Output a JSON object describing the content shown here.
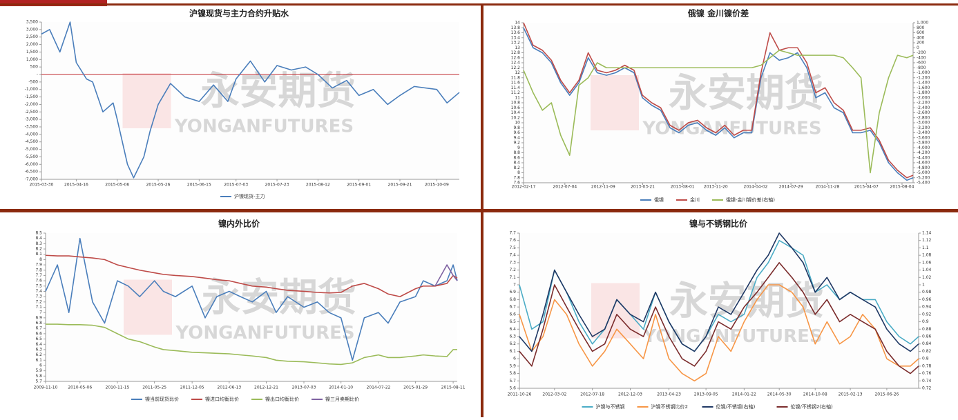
{
  "watermark": {
    "cn": "永安期货",
    "en": "YONGANFUTURES"
  },
  "chart_data": [
    {
      "type": "line",
      "title": "沪镍现货与主力合约升贴水",
      "x": [
        "2015-03-30",
        "2015-04-03",
        "2015-04-08",
        "2015-04-13",
        "2015-04-16",
        "2015-04-21",
        "2015-04-24",
        "2015-04-29",
        "2015-05-04",
        "2015-05-06",
        "2015-05-11",
        "2015-05-14",
        "2015-05-19",
        "2015-05-22",
        "2015-05-26",
        "2015-06-01",
        "2015-06-08",
        "2015-06-15",
        "2015-06-22",
        "2015-06-29",
        "2015-07-03",
        "2015-07-10",
        "2015-07-17",
        "2015-07-23",
        "2015-07-30",
        "2015-08-06",
        "2015-08-12",
        "2015-08-19",
        "2015-08-26",
        "2015-09-01",
        "2015-09-08",
        "2015-09-15",
        "2015-09-21",
        "2015-09-28",
        "2015-10-09",
        "2015-10-14",
        "2015-10-20"
      ],
      "xlim": [
        "2015-03-30",
        "2015-10-20"
      ],
      "xticks": [
        "2015-03-30",
        "2015-04-16",
        "2015-05-06",
        "2015-05-26",
        "2015-06-15",
        "2015-07-03",
        "2015-07-23",
        "2015-08-12",
        "2015-09-01",
        "2015-09-21",
        "2015-10-09"
      ],
      "ylim": [
        -7000,
        3500
      ],
      "yticks": [
        {
          "value": -7000,
          "label": "-7,000"
        },
        {
          "value": -6500,
          "label": "-6,500"
        },
        {
          "value": -6000,
          "label": "-6,000"
        },
        {
          "value": -5500,
          "label": "-5,500"
        },
        {
          "value": -5000,
          "label": "-5,000"
        },
        {
          "value": -4500,
          "label": "-4,500"
        },
        {
          "value": -4000,
          "label": "-4,000"
        },
        {
          "value": -3500,
          "label": "-3,500"
        },
        {
          "value": -3000,
          "label": "-3,000"
        },
        {
          "value": -2500,
          "label": "-2,500"
        },
        {
          "value": -2000,
          "label": "-2,000"
        },
        {
          "value": -1500,
          "label": "-1,500"
        },
        {
          "value": -1000,
          "label": "-1,000"
        },
        -500,
        {
          "value": 0,
          "label": "-"
        },
        500,
        {
          "value": 1000,
          "label": "1,000"
        },
        {
          "value": 1500,
          "label": "1,500"
        },
        {
          "value": 2000,
          "label": "2,000"
        },
        {
          "value": 2500,
          "label": "2,500"
        },
        {
          "value": 3000,
          "label": "3,000"
        },
        {
          "value": 3500,
          "label": "3,500"
        }
      ],
      "hline": 0,
      "hline_color": "#c0272d",
      "series": [
        {
          "name": "沪镍现货-主力",
          "color": "#4a7ebb",
          "values": [
            2700,
            3000,
            1500,
            3500,
            800,
            -300,
            -500,
            -2500,
            -1900,
            -3000,
            -6000,
            -6900,
            -5500,
            -3800,
            -2000,
            -600,
            -1500,
            -1800,
            -700,
            -1800,
            -300,
            900,
            -500,
            600,
            300,
            500,
            0,
            -900,
            -400,
            -1400,
            -1000,
            -2000,
            -1400,
            -800,
            -1000,
            -1900,
            -1200
          ]
        }
      ]
    },
    {
      "type": "line",
      "title": "俄镍  金川镍价差",
      "x": [
        "2012-02-17",
        "2012-03-20",
        "2012-04-20",
        "2012-05-20",
        "2012-06-20",
        "2012-07-20",
        "2012-08-20",
        "2012-09-20",
        "2012-10-20",
        "2012-11-20",
        "2012-12-20",
        "2013-01-20",
        "2013-02-20",
        "2013-03-20",
        "2013-04-20",
        "2013-05-20",
        "2013-06-20",
        "2013-07-20",
        "2013-08-20",
        "2013-09-20",
        "2013-10-20",
        "2013-11-20",
        "2013-12-20",
        "2014-01-20",
        "2014-02-20",
        "2014-03-20",
        "2014-04-20",
        "2014-05-20",
        "2014-06-20",
        "2014-07-20",
        "2014-08-20",
        "2014-09-20",
        "2014-10-20",
        "2014-11-20",
        "2014-12-20",
        "2015-01-20",
        "2015-02-20",
        "2015-03-20",
        "2015-04-20",
        "2015-05-20",
        "2015-06-20",
        "2015-07-20",
        "2015-08-20",
        "2015-09-10"
      ],
      "xlim": [
        "2012-02-17",
        "2015-09-10"
      ],
      "xticks": [
        "2012-02-17",
        "2012-07-04",
        "2012-11-09",
        "2013-03-21",
        "2013-08-01",
        "2013-11-20",
        "2014-04-02",
        "2014-07-29",
        "2014-11-28",
        "2015-04-07",
        "2015-08-04"
      ],
      "ylim": [
        7.6,
        14
      ],
      "yticks": [
        7.6,
        7.8,
        8,
        8.2,
        8.4,
        8.6,
        8.8,
        9,
        9.2,
        9.4,
        9.6,
        9.8,
        10,
        10.2,
        10.4,
        10.6,
        10.8,
        11,
        11.2,
        11.4,
        11.6,
        11.8,
        12,
        12.2,
        12.4,
        12.6,
        12.8,
        13,
        13.2,
        13.4,
        13.6,
        13.8,
        14
      ],
      "y2lim": [
        -5400,
        1000
      ],
      "y2ticks": [
        {
          "value": -5400,
          "label": "-5,400"
        },
        {
          "value": -5200,
          "label": "-5,200"
        },
        {
          "value": -5000,
          "label": "-5,000"
        },
        {
          "value": -4800,
          "label": "-4,800"
        },
        {
          "value": -4600,
          "label": "-4,600"
        },
        {
          "value": -4400,
          "label": "-4,400"
        },
        {
          "value": -4200,
          "label": "-4,200"
        },
        {
          "value": -4000,
          "label": "-4,000"
        },
        {
          "value": -3800,
          "label": "-3,800"
        },
        {
          "value": -3600,
          "label": "-3,600"
        },
        {
          "value": -3400,
          "label": "-3,400"
        },
        {
          "value": -3200,
          "label": "-3,200"
        },
        {
          "value": -3000,
          "label": "-3,000"
        },
        {
          "value": -2800,
          "label": "-2,800"
        },
        {
          "value": -2600,
          "label": "-2,600"
        },
        {
          "value": -2400,
          "label": "-2,400"
        },
        {
          "value": -2200,
          "label": "-2,200"
        },
        {
          "value": -2000,
          "label": "-2,000"
        },
        {
          "value": -1800,
          "label": "-1,800"
        },
        {
          "value": -1600,
          "label": "-1,600"
        },
        {
          "value": -1400,
          "label": "-1,400"
        },
        {
          "value": -1200,
          "label": "-1,200"
        },
        {
          "value": -1000,
          "label": "-1,000"
        },
        -800,
        -600,
        -400,
        -200,
        0,
        200,
        400,
        600,
        800,
        {
          "value": 1000,
          "label": "1,000"
        }
      ],
      "series": [
        {
          "name": "俄镍",
          "color": "#4a7ebb",
          "values": [
            13.8,
            13.0,
            12.8,
            12.4,
            11.6,
            11.1,
            11.6,
            12.6,
            12.0,
            11.9,
            12.0,
            12.2,
            12.0,
            11.0,
            10.7,
            10.5,
            9.8,
            9.6,
            9.9,
            10.0,
            9.7,
            9.5,
            9.8,
            9.4,
            9.6,
            9.6,
            11.8,
            12.8,
            12.5,
            12.6,
            12.8,
            12.2,
            11.0,
            11.2,
            10.6,
            10.4,
            9.6,
            9.6,
            9.7,
            9.2,
            8.4,
            8.0,
            7.7,
            7.8
          ]
        },
        {
          "name": "金川",
          "color": "#be4b48",
          "values": [
            14.0,
            13.1,
            12.9,
            12.5,
            11.7,
            11.2,
            11.7,
            12.8,
            12.1,
            12.0,
            12.1,
            12.3,
            12.1,
            11.1,
            10.8,
            10.6,
            9.9,
            9.7,
            10.0,
            10.1,
            9.8,
            9.6,
            9.9,
            9.5,
            9.7,
            9.7,
            12.0,
            13.6,
            12.9,
            13.0,
            13.0,
            12.4,
            11.2,
            11.4,
            10.8,
            10.5,
            9.7,
            9.7,
            9.8,
            9.3,
            8.5,
            8.1,
            7.8,
            7.9
          ]
        },
        {
          "name": "俄镍-金川镍价差(右轴)",
          "color": "#9bbb59",
          "axis": "y2",
          "values": [
            -900,
            -1800,
            -2500,
            -2200,
            -3500,
            -4300,
            -1500,
            -1200,
            -600,
            -800,
            -800,
            -800,
            -800,
            -800,
            -800,
            -800,
            -800,
            -800,
            -800,
            -800,
            -800,
            -800,
            -800,
            -800,
            -800,
            -800,
            -700,
            -400,
            -100,
            -200,
            -300,
            -300,
            -300,
            -300,
            -300,
            -400,
            -800,
            -1200,
            -5000,
            -2600,
            -1200,
            -300,
            -400,
            -300
          ]
        }
      ]
    },
    {
      "type": "line",
      "title": "镍内外比价",
      "x": [
        "2009-11-10",
        "2010-01-10",
        "2010-03-10",
        "2010-05-06",
        "2010-07-10",
        "2010-09-10",
        "2010-11-15",
        "2011-01-10",
        "2011-03-10",
        "2011-05-25",
        "2011-07-10",
        "2011-09-10",
        "2011-12-05",
        "2012-02-10",
        "2012-04-10",
        "2012-06-13",
        "2012-08-10",
        "2012-10-10",
        "2012-12-21",
        "2013-02-10",
        "2013-04-10",
        "2013-07-03",
        "2013-09-10",
        "2013-11-10",
        "2014-01-10",
        "2014-03-10",
        "2014-05-10",
        "2014-07-22",
        "2014-09-10",
        "2014-11-10",
        "2015-01-29",
        "2015-03-10",
        "2015-05-10",
        "2015-07-10",
        "2015-08-11",
        "2015-09-01"
      ],
      "xlim": [
        "2009-11-10",
        "2015-09-01"
      ],
      "xticks": [
        "2009-11-10",
        "2010-05-06",
        "2010-11-15",
        "2011-05-25",
        "2011-12-05",
        "2012-06-13",
        "2012-12-21",
        "2013-07-03",
        "2014-01-10",
        "2014-07-22",
        "2015-01-29",
        "2015-08-11"
      ],
      "ylim": [
        5.7,
        8.5
      ],
      "yticks": [
        5.7,
        5.8,
        5.9,
        6,
        6.1,
        6.2,
        6.3,
        6.4,
        6.5,
        6.6,
        6.7,
        6.8,
        6.9,
        7,
        7.1,
        7.2,
        7.3,
        7.4,
        7.5,
        7.6,
        7.7,
        7.8,
        7.9,
        8,
        8.1,
        8.2,
        8.3,
        8.4,
        8.5
      ],
      "series": [
        {
          "name": "镍当前现货比价",
          "color": "#4a7ebb",
          "values": [
            7.4,
            7.9,
            7.0,
            8.4,
            7.2,
            6.8,
            7.6,
            7.5,
            7.3,
            7.6,
            7.4,
            7.3,
            7.5,
            6.9,
            7.3,
            7.4,
            7.3,
            7.2,
            7.4,
            7.0,
            7.3,
            7.1,
            7.2,
            7.0,
            6.9,
            6.1,
            6.9,
            7.0,
            6.8,
            7.2,
            7.3,
            7.6,
            7.5,
            7.6,
            7.9,
            7.6
          ]
        },
        {
          "name": "镍进口均衡比价",
          "color": "#be4b48",
          "values": [
            8.08,
            8.07,
            8.07,
            8.05,
            8.03,
            8.0,
            7.9,
            7.85,
            7.8,
            7.75,
            7.72,
            7.7,
            7.68,
            7.65,
            7.62,
            7.6,
            7.55,
            7.5,
            7.48,
            7.45,
            7.42,
            7.4,
            7.38,
            7.37,
            7.38,
            7.5,
            7.55,
            7.45,
            7.35,
            7.3,
            7.45,
            7.5,
            7.5,
            7.55,
            7.7,
            7.65
          ]
        },
        {
          "name": "镍出口均衡比价",
          "color": "#9bbb59",
          "values": [
            6.78,
            6.78,
            6.77,
            6.77,
            6.76,
            6.72,
            6.6,
            6.5,
            6.45,
            6.35,
            6.3,
            6.28,
            6.25,
            6.24,
            6.23,
            6.22,
            6.2,
            6.18,
            6.15,
            6.1,
            6.08,
            6.07,
            6.05,
            6.03,
            6.02,
            6.05,
            6.15,
            6.2,
            6.15,
            6.15,
            6.18,
            6.2,
            6.18,
            6.17,
            6.3,
            6.3
          ]
        },
        {
          "name": "镍三月卖期比价",
          "color": "#7f63a2",
          "values": [
            null,
            null,
            null,
            null,
            null,
            null,
            null,
            null,
            null,
            null,
            null,
            null,
            null,
            null,
            null,
            null,
            null,
            null,
            null,
            null,
            null,
            null,
            null,
            null,
            null,
            null,
            null,
            null,
            null,
            null,
            null,
            null,
            7.5,
            7.9,
            7.7,
            7.6
          ]
        }
      ]
    },
    {
      "type": "line",
      "title": "镍与不锈钢比价",
      "x": [
        "2011-10-26",
        "2011-12-10",
        "2012-01-20",
        "2012-03-02",
        "2012-04-15",
        "2012-05-30",
        "2012-07-18",
        "2012-09-01",
        "2012-10-15",
        "2012-12-03",
        "2013-01-20",
        "2013-03-05",
        "2013-04-23",
        "2013-06-10",
        "2013-07-25",
        "2013-09-05",
        "2013-10-20",
        "2013-12-05",
        "2014-01-22",
        "2014-03-10",
        "2014-04-20",
        "2014-05-30",
        "2014-07-15",
        "2014-08-25",
        "2014-10-08",
        "2014-11-20",
        "2015-01-05",
        "2015-02-13",
        "2015-03-30",
        "2015-05-15",
        "2015-06-26",
        "2015-08-10",
        "2015-09-20",
        "2015-10-20"
      ],
      "xlim": [
        "2011-10-26",
        "2015-10-20"
      ],
      "xticks": [
        "2011-10-26",
        "2012-03-02",
        "2012-07-18",
        "2012-12-03",
        "2013-04-23",
        "2013-09-05",
        "2014-01-22",
        "2014-05-30",
        "2014-10-08",
        "2015-02-13",
        "2015-06-26"
      ],
      "ylim": [
        5.6,
        7.7
      ],
      "yticks": [
        5.6,
        5.7,
        5.8,
        5.9,
        6,
        6.1,
        6.2,
        6.3,
        6.4,
        6.5,
        6.6,
        6.7,
        6.8,
        6.9,
        7,
        7.1,
        7.2,
        7.3,
        7.4,
        7.5,
        7.6,
        7.7
      ],
      "y2lim": [
        0.72,
        1.14
      ],
      "y2ticks": [
        0.72,
        0.74,
        0.76,
        0.78,
        0.8,
        0.82,
        0.84,
        0.86,
        0.88,
        0.9,
        0.92,
        0.94,
        0.96,
        0.98,
        1,
        1.02,
        1.04,
        1.06,
        1.08,
        1.1,
        1.12,
        1.14
      ],
      "series": [
        {
          "name": "沪镍与不锈钢",
          "color": "#4bacc6",
          "values": [
            7.0,
            6.4,
            6.5,
            7.2,
            6.9,
            6.5,
            6.2,
            6.4,
            6.8,
            6.6,
            6.4,
            6.9,
            6.5,
            6.2,
            6.1,
            6.3,
            6.6,
            6.5,
            6.6,
            7.1,
            7.3,
            7.6,
            7.5,
            7.4,
            6.9,
            7.0,
            6.8,
            6.9,
            6.8,
            6.8,
            6.5,
            6.3,
            6.2,
            6.3
          ]
        },
        {
          "name": "沪镍不锈钢比价2",
          "color": "#f79646",
          "values": [
            6.6,
            6.1,
            6.3,
            6.8,
            6.6,
            6.2,
            5.9,
            6.1,
            6.4,
            6.2,
            6.0,
            6.6,
            6.0,
            5.8,
            5.7,
            5.8,
            6.3,
            6.1,
            6.5,
            6.8,
            7.0,
            7.0,
            6.9,
            6.7,
            6.2,
            6.5,
            6.2,
            6.3,
            6.6,
            6.4,
            6.0,
            5.9,
            5.9,
            6.0
          ]
        },
        {
          "name": "伦镍/不锈钢(右轴)",
          "color": "#1f3864",
          "axis": "y2",
          "values": [
            0.86,
            0.82,
            0.92,
            1.04,
            0.98,
            0.92,
            0.86,
            0.88,
            0.96,
            0.92,
            0.9,
            0.98,
            0.9,
            0.84,
            0.82,
            0.86,
            0.94,
            0.92,
            0.98,
            1.04,
            1.08,
            1.14,
            1.1,
            1.06,
            0.98,
            1.02,
            0.96,
            0.98,
            0.96,
            0.94,
            0.88,
            0.84,
            0.82,
            0.84
          ]
        },
        {
          "name": "伦镍/不锈钢2(右轴)",
          "color": "#7b2c2c",
          "axis": "y2",
          "values": [
            0.82,
            0.78,
            0.88,
            1.0,
            0.94,
            0.88,
            0.82,
            0.84,
            0.92,
            0.88,
            0.86,
            0.94,
            0.86,
            0.8,
            0.78,
            0.82,
            0.9,
            0.88,
            0.94,
            0.98,
            1.02,
            1.06,
            1.02,
            0.98,
            0.92,
            0.96,
            0.9,
            0.92,
            0.9,
            0.88,
            0.82,
            0.78,
            0.76,
            0.78
          ]
        }
      ]
    }
  ]
}
